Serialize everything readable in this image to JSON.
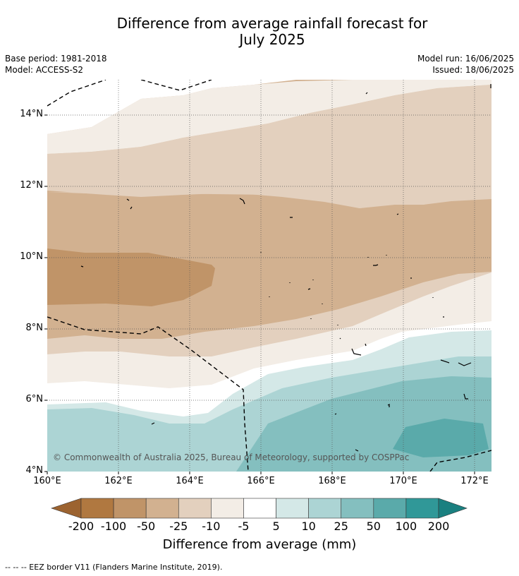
{
  "title_line1": "Difference from average rainfall forecast for",
  "title_line2": "July 2025",
  "base_period": "Base period: 1981-2018",
  "model": "Model: ACCESS-S2",
  "model_run": "Model run: 16/06/2025",
  "issued": "Issued: 18/06/2025",
  "copyright": "© Commonwealth of Australia 2025, Bureau of Meteorology, supported by COSPPac",
  "footer": "-- -- -- EEZ border V11 (Flanders Marine Institute, 2019).",
  "map": {
    "lon_ticks": [
      "160°E",
      "162°E",
      "164°E",
      "166°E",
      "168°E",
      "170°E",
      "172°E"
    ],
    "lat_ticks": [
      "14°N",
      "12°N",
      "10°N",
      "8°N",
      "6°N",
      "4°N"
    ],
    "grid": true
  },
  "colorbar": {
    "title": "Difference from average (mm)",
    "labels": [
      "-200",
      "-100",
      "-50",
      "-25",
      "-10",
      "-5",
      "5",
      "10",
      "25",
      "50",
      "100",
      "200"
    ],
    "colors": [
      "#9c6330",
      "#b07840",
      "#c09468",
      "#d2b190",
      "#e3d0be",
      "#f3ede6",
      "#ffffff",
      "#d4e8e7",
      "#acd4d4",
      "#84bfbf",
      "#5aaaaa",
      "#309898",
      "#1a8080"
    ]
  }
}
